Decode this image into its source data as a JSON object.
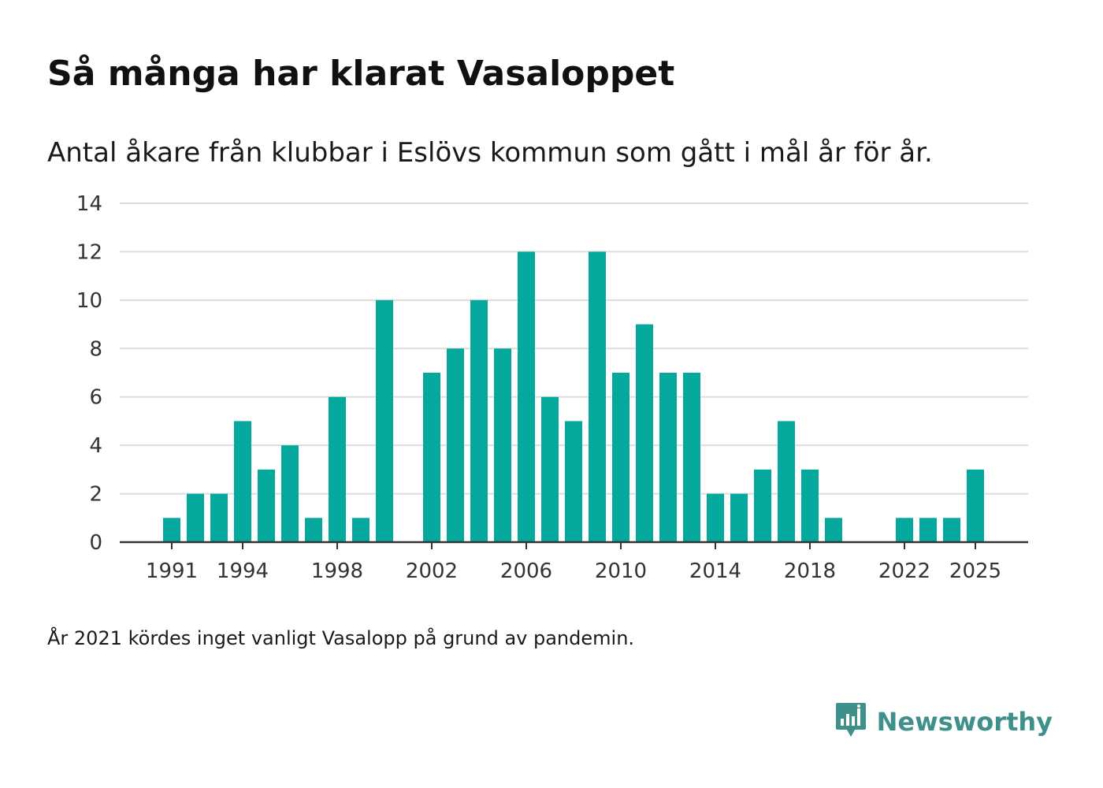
{
  "header": {
    "title": "Så många har klarat Vasaloppet",
    "subtitle": "Antal åkare från klubbar i Eslövs kommun som gått i mål år för år."
  },
  "footnote": "År 2021 kördes inget vanligt Vasalopp på grund av pandemin.",
  "brand": {
    "name": "Newsworthy",
    "logo_icon": "newsworthy-bar-chart-logo-icon",
    "color": "#3f8f8b"
  },
  "colors": {
    "bar": "#05a89c",
    "grid": "#dddddd",
    "axis": "#333333"
  },
  "chart_data": {
    "type": "bar",
    "title": "Så många har klarat Vasaloppet",
    "subtitle": "Antal åkare från klubbar i Eslövs kommun som gått i mål år för år.",
    "xlabel": "",
    "ylabel": "",
    "ylim": [
      0,
      14
    ],
    "yticks": [
      0,
      2,
      4,
      6,
      8,
      10,
      12,
      14
    ],
    "xlim": [
      1989,
      2027
    ],
    "xticks": [
      1991,
      1994,
      1998,
      2002,
      2006,
      2010,
      2014,
      2018,
      2022,
      2025
    ],
    "grid": true,
    "legend": "none",
    "x": [
      1991,
      1992,
      1993,
      1994,
      1995,
      1996,
      1997,
      1998,
      1999,
      2000,
      2001,
      2002,
      2003,
      2004,
      2005,
      2006,
      2007,
      2008,
      2009,
      2010,
      2011,
      2012,
      2013,
      2014,
      2015,
      2016,
      2017,
      2018,
      2019,
      2020,
      2021,
      2022,
      2023,
      2024,
      2025
    ],
    "values": [
      1,
      2,
      2,
      5,
      3,
      4,
      1,
      6,
      1,
      10,
      0,
      7,
      8,
      10,
      8,
      12,
      6,
      5,
      12,
      7,
      9,
      7,
      7,
      2,
      2,
      3,
      5,
      3,
      1,
      0,
      0,
      1,
      1,
      1,
      3
    ]
  }
}
